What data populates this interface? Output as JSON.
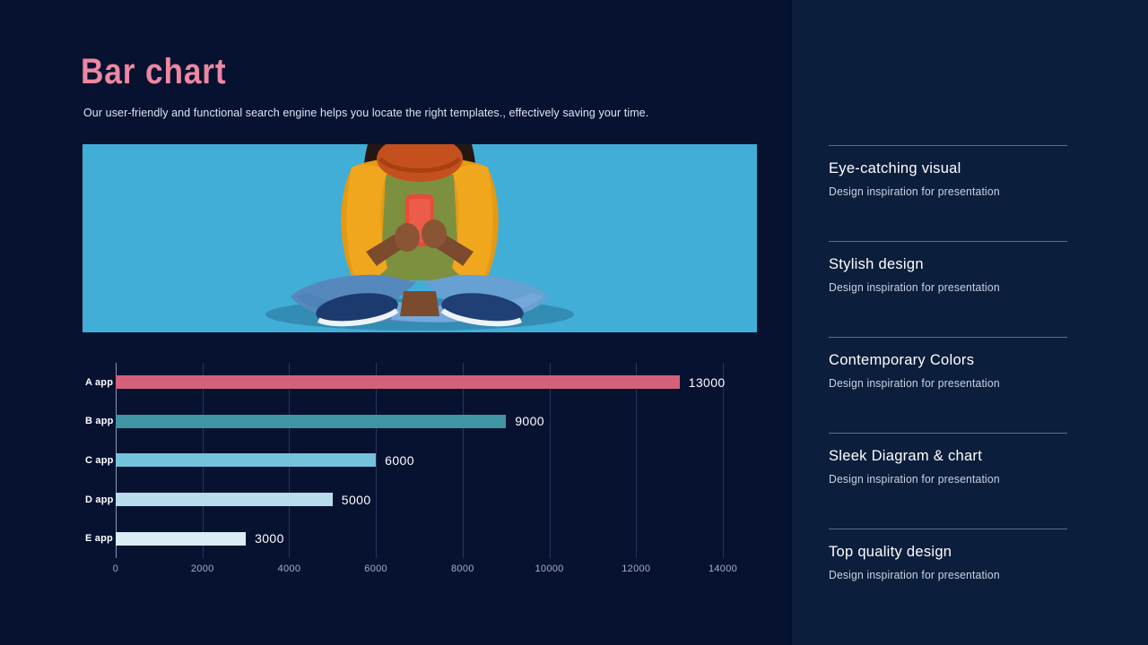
{
  "slide": {
    "title": "Bar chart",
    "subtitle": "Our user-friendly and functional search engine helps you locate the right templates., effectively saving your time."
  },
  "photo": {
    "description": "Person in a yellow puffer jacket, orange knit scarf and green shirt sitting cross-legged in blue jeans and navy sneakers, using a red smartphone, on a light blue backdrop"
  },
  "chart_data": {
    "type": "bar",
    "orientation": "horizontal",
    "title": "",
    "xlabel": "",
    "ylabel": "",
    "categories": [
      "A app",
      "B app",
      "C app",
      "D app",
      "E app"
    ],
    "values": [
      13000,
      9000,
      6000,
      5000,
      3000
    ],
    "bar_colors": [
      "#d4617a",
      "#3f95a4",
      "#74c2db",
      "#b9dcea",
      "#daecf4"
    ],
    "xlim": [
      0,
      14000
    ],
    "xticks": [
      0,
      2000,
      4000,
      6000,
      8000,
      10000,
      12000,
      14000
    ],
    "grid": true,
    "legend": false,
    "value_labels_shown": true
  },
  "sidebar": {
    "items": [
      {
        "title": "Eye-catching visual",
        "subtitle": "Design inspiration for presentation"
      },
      {
        "title": "Stylish design",
        "subtitle": "Design inspiration for presentation"
      },
      {
        "title": "Contemporary Colors",
        "subtitle": "Design inspiration for presentation"
      },
      {
        "title": "Sleek Diagram & chart",
        "subtitle": "Design inspiration for presentation"
      },
      {
        "title": "Top quality design",
        "subtitle": "Design inspiration for presentation"
      }
    ]
  },
  "colors": {
    "background": "#071231",
    "panel_background": "#0b1e3c",
    "accent_pink": "#ee87a2",
    "photo_background": "#41aed8",
    "text_primary": "#ffffff",
    "text_secondary": "#c9d4e2",
    "tick_label": "#9fb0c8"
  }
}
